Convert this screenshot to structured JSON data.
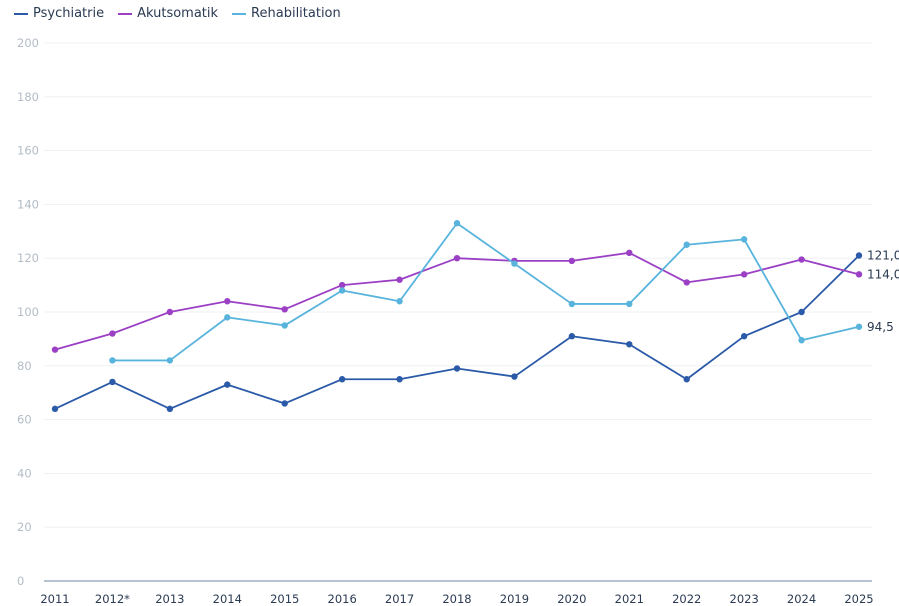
{
  "chart_data": {
    "type": "line",
    "categories": [
      "2011",
      "2012*",
      "2013",
      "2014",
      "2015",
      "2016",
      "2017",
      "2018",
      "2019",
      "2020",
      "2021",
      "2022",
      "2023",
      "2024",
      "2025"
    ],
    "ylim": [
      0,
      200
    ],
    "yticks": [
      "0",
      "20",
      "40",
      "60",
      "80",
      "100",
      "120",
      "140",
      "160",
      "180",
      "200"
    ],
    "grid": true,
    "legend_position": "top-left",
    "series": [
      {
        "name": "Psychiatrie",
        "color": "#2b5aa8",
        "values": [
          64,
          74,
          64,
          73,
          66,
          75,
          75,
          79,
          76,
          91,
          88,
          75,
          91,
          100,
          121
        ],
        "end_label": "121,0"
      },
      {
        "name": "Akutsomatik",
        "color": "#9b3fc4",
        "values": [
          86,
          92,
          100,
          104,
          101,
          110,
          112,
          120,
          119,
          119,
          122,
          111,
          114,
          119.5,
          114
        ],
        "end_label": "114,0"
      },
      {
        "name": "Rehabilitation",
        "color": "#58b4dc",
        "values": [
          null,
          82,
          82,
          98,
          95,
          108,
          104,
          133,
          118,
          103,
          103,
          125,
          127,
          89.5,
          94.5
        ],
        "end_label": "94,5"
      }
    ]
  }
}
